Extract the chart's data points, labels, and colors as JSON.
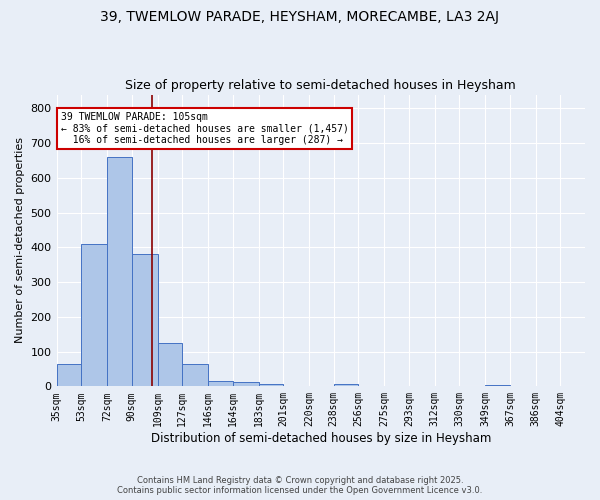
{
  "title1": "39, TWEMLOW PARADE, HEYSHAM, MORECAMBE, LA3 2AJ",
  "title2": "Size of property relative to semi-detached houses in Heysham",
  "xlabel": "Distribution of semi-detached houses by size in Heysham",
  "ylabel": "Number of semi-detached properties",
  "bin_labels": [
    "35sqm",
    "53sqm",
    "72sqm",
    "90sqm",
    "109sqm",
    "127sqm",
    "146sqm",
    "164sqm",
    "183sqm",
    "201sqm",
    "220sqm",
    "238sqm",
    "256sqm",
    "275sqm",
    "293sqm",
    "312sqm",
    "330sqm",
    "349sqm",
    "367sqm",
    "386sqm",
    "404sqm"
  ],
  "bin_edges": [
    35,
    53,
    72,
    90,
    109,
    127,
    146,
    164,
    183,
    201,
    220,
    238,
    256,
    275,
    293,
    312,
    330,
    349,
    367,
    386,
    404
  ],
  "bar_heights": [
    65,
    410,
    660,
    380,
    125,
    65,
    15,
    12,
    8,
    0,
    0,
    8,
    0,
    0,
    0,
    0,
    0,
    5,
    0,
    0,
    0
  ],
  "bar_color": "#aec6e8",
  "bar_edge_color": "#4472c4",
  "background_color": "#e8eef7",
  "grid_color": "#ffffff",
  "red_line_x": 105,
  "annotation_line1": "39 TWEMLOW PARADE: 105sqm",
  "annotation_line2": "← 83% of semi-detached houses are smaller (1,457)",
  "annotation_line3": "  16% of semi-detached houses are larger (287) →",
  "annotation_box_color": "#ffffff",
  "annotation_box_edge": "#cc0000",
  "ylim": [
    0,
    840
  ],
  "yticks": [
    0,
    100,
    200,
    300,
    400,
    500,
    600,
    700,
    800
  ],
  "footer1": "Contains HM Land Registry data © Crown copyright and database right 2025.",
  "footer2": "Contains public sector information licensed under the Open Government Licence v3.0."
}
